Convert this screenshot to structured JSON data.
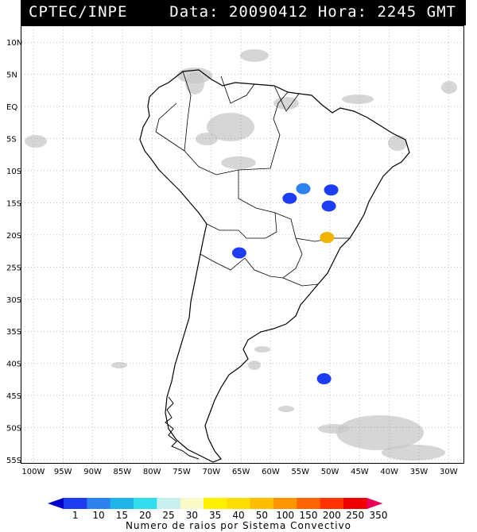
{
  "header": {
    "title": "CPTEC/INPE",
    "info": "Data: 20090412 Hora: 2245 GMT"
  },
  "map": {
    "lat_labels": [
      "10N",
      "5N",
      "EQ",
      "5S",
      "10S",
      "15S",
      "20S",
      "25S",
      "30S",
      "35S",
      "40S",
      "45S",
      "50S",
      "55S"
    ],
    "lon_labels": [
      "100W",
      "95W",
      "90W",
      "85W",
      "80W",
      "75W",
      "70W",
      "65W",
      "60W",
      "55W",
      "50W",
      "45W",
      "40W",
      "35W",
      "30W"
    ],
    "lat_values": [
      10,
      5,
      0,
      -5,
      -10,
      -15,
      -20,
      -25,
      -30,
      -35,
      -40,
      -45,
      -50,
      -55
    ],
    "lon_values": [
      -100,
      -95,
      -90,
      -85,
      -80,
      -75,
      -70,
      -65,
      -60,
      -55,
      -50,
      -45,
      -40,
      -35,
      -30
    ],
    "colors": {
      "land_outline": "#000000",
      "cloud": "#c8c8c8",
      "grid": "#9a9a9a"
    },
    "convective_systems": [
      {
        "lat": -12.8,
        "lon": -54.5,
        "color": "#2e82f0"
      },
      {
        "lat": -14.3,
        "lon": -56.8,
        "color": "#1e3cf0"
      },
      {
        "lat": -13.0,
        "lon": -49.8,
        "color": "#1e3cf0"
      },
      {
        "lat": -15.5,
        "lon": -50.2,
        "color": "#1e3cf0"
      },
      {
        "lat": -20.4,
        "lon": -50.5,
        "color": "#f0b400"
      },
      {
        "lat": -22.8,
        "lon": -65.3,
        "color": "#1e3cf0"
      },
      {
        "lat": -42.4,
        "lon": -51.0,
        "color": "#1e3cf0"
      }
    ]
  },
  "color_scale": {
    "labels": [
      "1",
      "10",
      "15",
      "20",
      "25",
      "30",
      "35",
      "40",
      "50",
      "100",
      "150",
      "200",
      "250",
      "350"
    ],
    "colors": [
      "#0000c8",
      "#1e3cf0",
      "#2e82f0",
      "#1eb4e6",
      "#32dcf0",
      "#c8f0f0",
      "#fafac8",
      "#fff000",
      "#ffdc00",
      "#ffbe00",
      "#ff9600",
      "#ff6400",
      "#ff3200",
      "#f00000",
      "#e6005a"
    ],
    "caption": "Numero de raios por Sistema Convectivo"
  }
}
